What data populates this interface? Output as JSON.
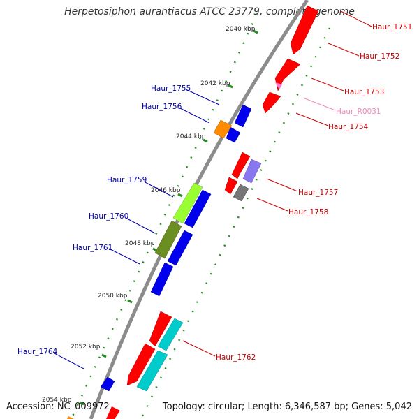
{
  "title": "Herpetosiphon aurantiacus ATCC 23779, complete genome",
  "footer": {
    "accession": "Accession: NC_009972",
    "topology": "Topology: circular; Length: 6,346,587 bp; Genes: 5,042"
  },
  "colors": {
    "backbone": "#8c8c8c",
    "tick": "#228b22",
    "label_forward": "#cc0000",
    "label_reverse": "#0000aa",
    "label_rna": "#ee88bb",
    "red": "#ff0000",
    "blue": "#0000ee",
    "orange": "#ff8c00",
    "lime": "#99ff33",
    "olive": "#6b8e23",
    "cyan": "#00cccc",
    "gray": "#777777",
    "lavender": "#8877ee",
    "pink": "#ff77cc"
  },
  "ticks": [
    "2040 kbp",
    "2042 kbp",
    "2044 kbp",
    "2046 kbp",
    "2048 kbp",
    "2050 kbp",
    "2052 kbp",
    "2054 kbp"
  ],
  "labels_right": [
    {
      "text": "Haur_1751",
      "kind": "forward"
    },
    {
      "text": "Haur_1752",
      "kind": "forward"
    },
    {
      "text": "Haur_1753",
      "kind": "forward"
    },
    {
      "text": "Haur_R0031",
      "kind": "rna"
    },
    {
      "text": "Haur_1754",
      "kind": "forward"
    },
    {
      "text": "Haur_1757",
      "kind": "forward"
    },
    {
      "text": "Haur_1758",
      "kind": "forward"
    },
    {
      "text": "Haur_1762",
      "kind": "forward"
    }
  ],
  "labels_left": [
    {
      "text": "Haur_1755",
      "kind": "reverse"
    },
    {
      "text": "Haur_1756",
      "kind": "reverse"
    },
    {
      "text": "Haur_1759",
      "kind": "reverse"
    },
    {
      "text": "Haur_1760",
      "kind": "reverse"
    },
    {
      "text": "Haur_1761",
      "kind": "reverse"
    },
    {
      "text": "Haur_1764",
      "kind": "reverse"
    }
  ]
}
